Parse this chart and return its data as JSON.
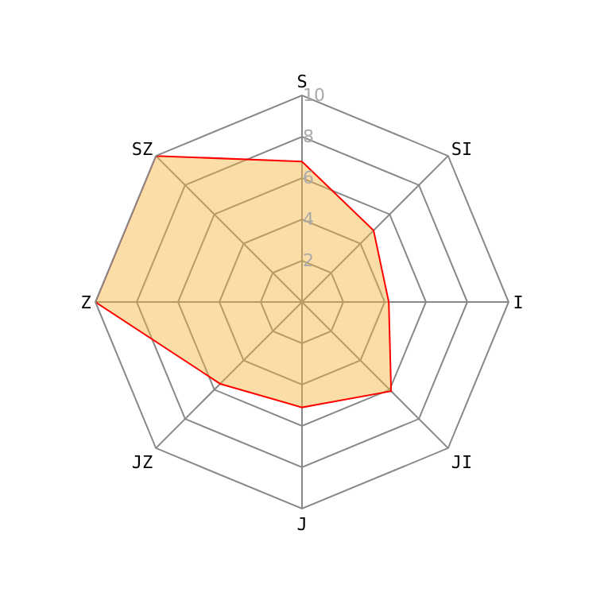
{
  "chart_data": {
    "type": "radar",
    "categories": [
      "S",
      "SI",
      "I",
      "JI",
      "J",
      "JZ",
      "Z",
      "SZ"
    ],
    "series": [
      {
        "color": "#ff0000",
        "values": [
          6.8,
          4.9,
          4.2,
          6.1,
          5.1,
          5.6,
          10,
          10
        ]
      }
    ],
    "ylim": [
      0,
      10
    ],
    "yticks": [
      2,
      4,
      6,
      8,
      10
    ],
    "grid": true,
    "marker": "none"
  }
}
